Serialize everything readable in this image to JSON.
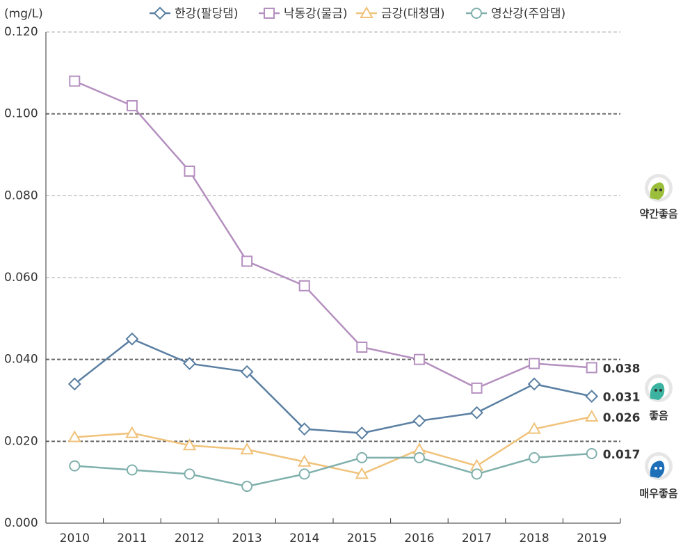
{
  "chart_data": {
    "type": "line",
    "y_unit": "(mg/L)",
    "categories": [
      "2010",
      "2011",
      "2012",
      "2013",
      "2014",
      "2015",
      "2016",
      "2017",
      "2018",
      "2019"
    ],
    "series": [
      {
        "name": "한강(팔당댐)",
        "color": "#5a7fa2",
        "marker": "diamond",
        "values": [
          0.034,
          0.045,
          0.039,
          0.037,
          0.023,
          0.022,
          0.025,
          0.027,
          0.034,
          0.031
        ]
      },
      {
        "name": "낙동강(물금)",
        "color": "#b48fbf",
        "marker": "square",
        "values": [
          0.108,
          0.102,
          0.086,
          0.064,
          0.058,
          0.043,
          0.04,
          0.033,
          0.039,
          0.038
        ]
      },
      {
        "name": "금강(대청댐)",
        "color": "#f0c27a",
        "marker": "triangle",
        "values": [
          0.021,
          0.022,
          0.019,
          0.018,
          0.015,
          0.012,
          0.018,
          0.014,
          0.023,
          0.026
        ]
      },
      {
        "name": "영산강(주암댐)",
        "color": "#7fb0ac",
        "marker": "circle",
        "values": [
          0.014,
          0.013,
          0.012,
          0.009,
          0.012,
          0.016,
          0.016,
          0.012,
          0.016,
          0.017
        ]
      }
    ],
    "ylim": [
      0,
      0.12
    ],
    "yticks": [
      {
        "value": 0,
        "label": "0.000"
      },
      {
        "value": 0.02,
        "label": "0.020"
      },
      {
        "value": 0.04,
        "label": "0.040"
      },
      {
        "value": 0.06,
        "label": "0.060"
      },
      {
        "value": 0.08,
        "label": "0.080"
      },
      {
        "value": 0.1,
        "label": "0.100"
      },
      {
        "value": 0.12,
        "label": "0.120"
      }
    ],
    "thresholds": [
      0.02,
      0.04,
      0.1
    ],
    "grid": true,
    "grades": [
      "약간좋음",
      "좋음",
      "매우좋음"
    ]
  }
}
